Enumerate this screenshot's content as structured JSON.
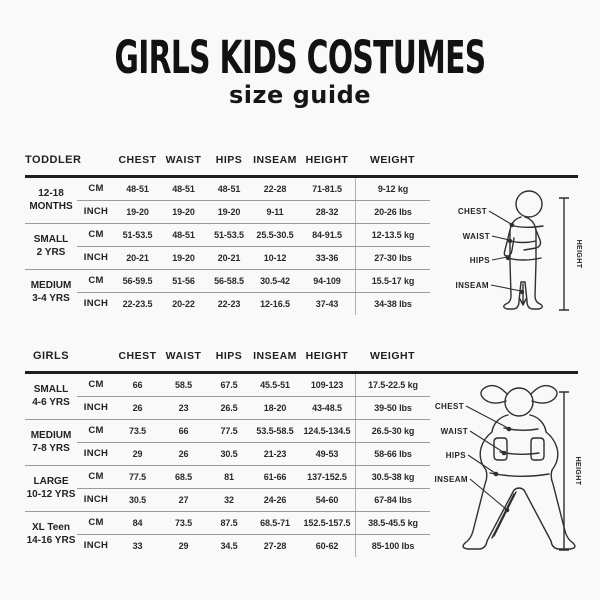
{
  "title": "GIRLS KIDS COSTUMES",
  "subtitle": "size guide",
  "colors": {
    "bg": "#f9f9f9",
    "ink": "#262626",
    "line-thick": "#1d1d1d",
    "line-thin": "#9b9b9b",
    "divider": "#b0b0b0"
  },
  "tables": [
    {
      "label": "TODDLER",
      "columns": [
        "CHEST",
        "WAIST",
        "HIPS",
        "INSEAM",
        "HEIGHT",
        "WEIGHT"
      ],
      "unit_labels": [
        "CM",
        "INCH"
      ],
      "groups": [
        {
          "size": [
            "12-18",
            "MONTHS"
          ],
          "cm": [
            "48-51",
            "48-51",
            "48-51",
            "22-28",
            "71-81.5",
            "9-12 kg"
          ],
          "inch": [
            "19-20",
            "19-20",
            "19-20",
            "9-11",
            "28-32",
            "20-26 lbs"
          ]
        },
        {
          "size": [
            "SMALL",
            "2 YRS"
          ],
          "cm": [
            "51-53.5",
            "48-51",
            "51-53.5",
            "25.5-30.5",
            "84-91.5",
            "12-13.5 kg"
          ],
          "inch": [
            "20-21",
            "19-20",
            "20-21",
            "10-12",
            "33-36",
            "27-30 lbs"
          ]
        },
        {
          "size": [
            "MEDIUM",
            "3-4 YRS"
          ],
          "cm": [
            "56-59.5",
            "51-56",
            "56-58.5",
            "30.5-42",
            "94-109",
            "15.5-17 kg"
          ],
          "inch": [
            "22-23.5",
            "20-22",
            "22-23",
            "12-16.5",
            "37-43",
            "34-38 lbs"
          ]
        }
      ]
    },
    {
      "label": "GIRLS",
      "columns": [
        "CHEST",
        "WAIST",
        "HIPS",
        "INSEAM",
        "HEIGHT",
        "WEIGHT"
      ],
      "unit_labels": [
        "CM",
        "INCH"
      ],
      "groups": [
        {
          "size": [
            "SMALL",
            "4-6 YRS"
          ],
          "cm": [
            "66",
            "58.5",
            "67.5",
            "45.5-51",
            "109-123",
            "17.5-22.5 kg"
          ],
          "inch": [
            "26",
            "23",
            "26.5",
            "18-20",
            "43-48.5",
            "39-50 lbs"
          ]
        },
        {
          "size": [
            "MEDIUM",
            "7-8 YRS"
          ],
          "cm": [
            "73.5",
            "66",
            "77.5",
            "53.5-58.5",
            "124.5-134.5",
            "26.5-30 kg"
          ],
          "inch": [
            "29",
            "26",
            "30.5",
            "21-23",
            "49-53",
            "58-66 lbs"
          ]
        },
        {
          "size": [
            "LARGE",
            "10-12 YRS"
          ],
          "cm": [
            "77.5",
            "68.5",
            "81",
            "61-66",
            "137-152.5",
            "30.5-38 kg"
          ],
          "inch": [
            "30.5",
            "27",
            "32",
            "24-26",
            "54-60",
            "67-84 lbs"
          ]
        },
        {
          "size": [
            "XL Teen",
            "14-16 YRS"
          ],
          "cm": [
            "84",
            "73.5",
            "87.5",
            "68.5-71",
            "152.5-157.5",
            "38.5-45.5 kg"
          ],
          "inch": [
            "33",
            "29",
            "34.5",
            "27-28",
            "60-62",
            "85-100 lbs"
          ]
        }
      ]
    }
  ],
  "figures": {
    "toddler": {
      "labels": [
        "CHEST",
        "WAIST",
        "HIPS",
        "INSEAM"
      ],
      "height_label": "HEIGHT"
    },
    "girls": {
      "labels": [
        "CHEST",
        "WAIST",
        "HIPS",
        "INSEAM"
      ],
      "height_label": "HEIGHT"
    }
  }
}
